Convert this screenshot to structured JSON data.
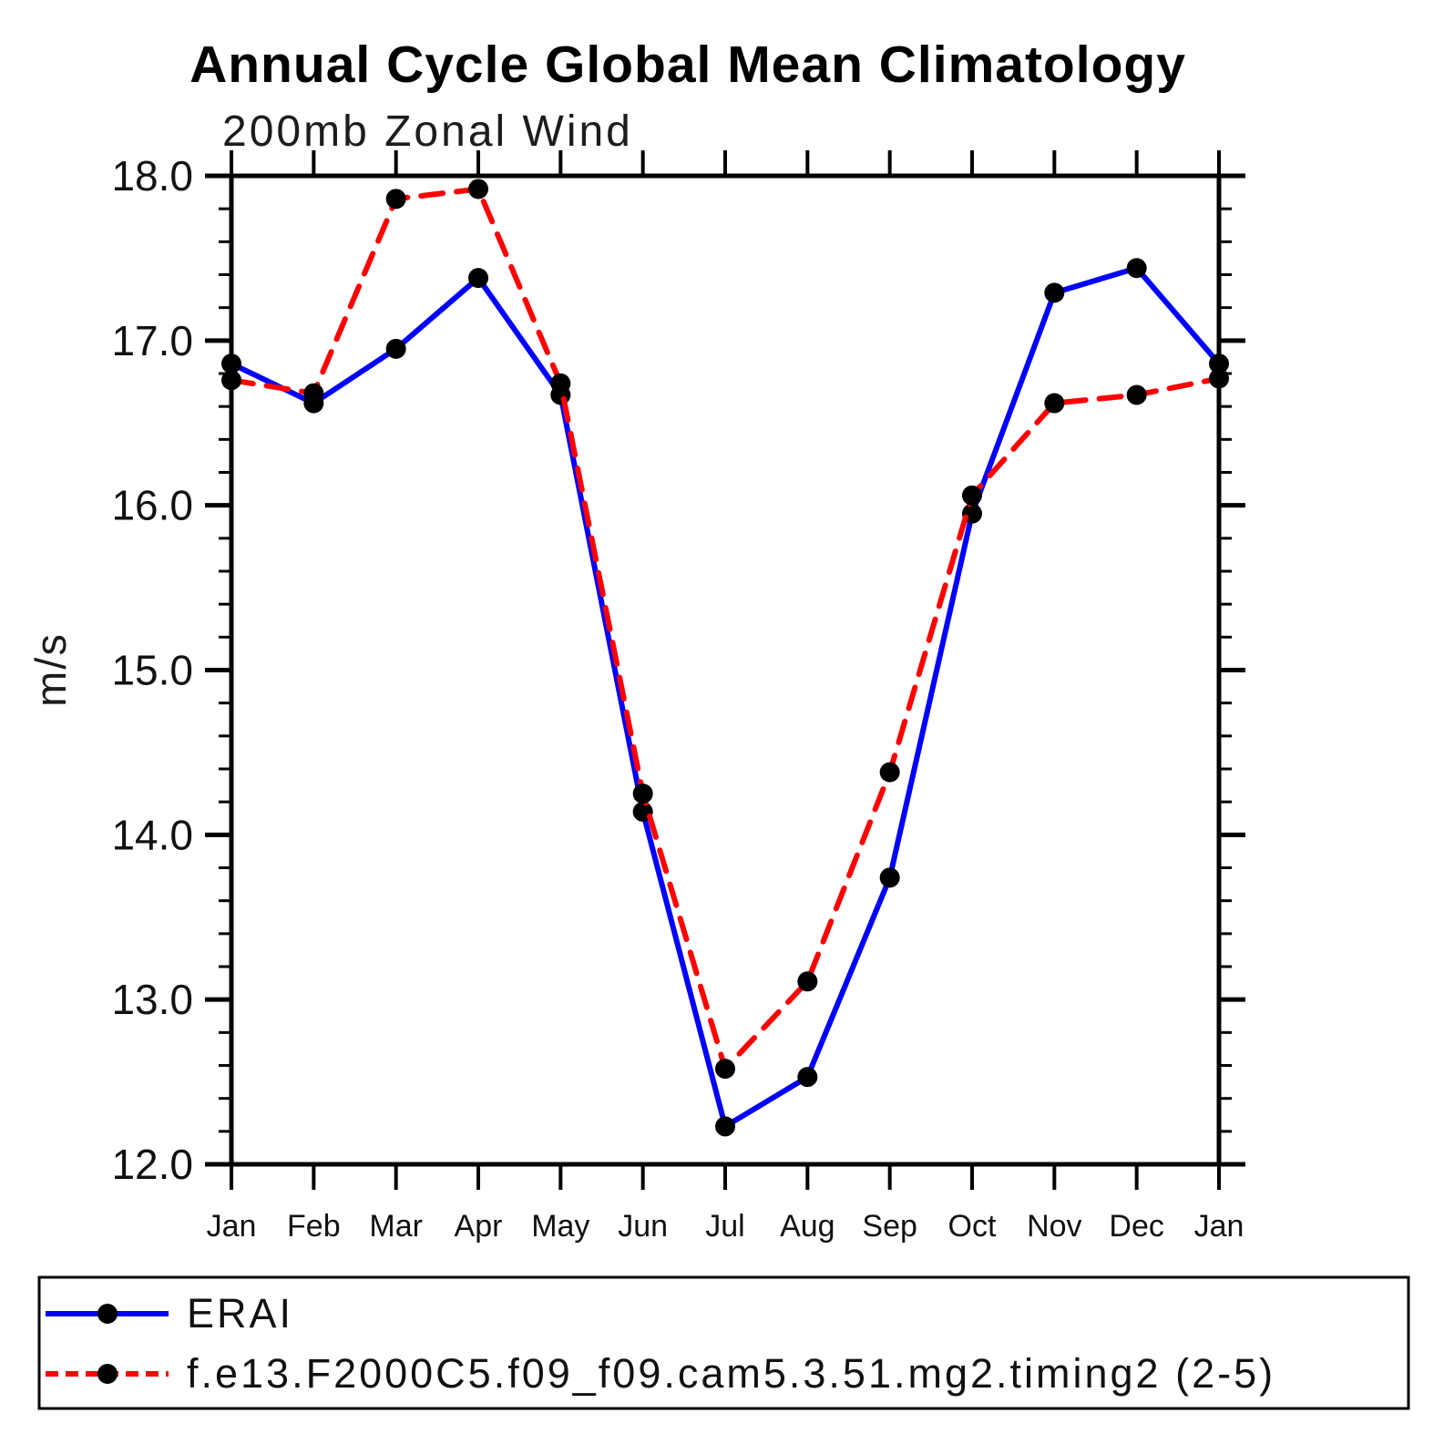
{
  "header": {
    "title": "Annual Cycle Global Mean Climatology",
    "subtitle": "200mb Zonal Wind"
  },
  "axes": {
    "y": {
      "label": "m/s",
      "min": 12.0,
      "max": 18.0,
      "major_step": 1.0,
      "minor_step": 0.2,
      "tick_labels": [
        "18.0",
        "17.0",
        "16.0",
        "15.0",
        "14.0",
        "13.0",
        "12.0"
      ]
    },
    "x": {
      "tick_labels": [
        "Jan",
        "Feb",
        "Mar",
        "Apr",
        "May",
        "Jun",
        "Jul",
        "Aug",
        "Sep",
        "Oct",
        "Nov",
        "Dec",
        "Jan"
      ]
    }
  },
  "legend": {
    "entries": [
      {
        "label": "ERAI",
        "color": "#0000ff",
        "style": "solid",
        "marker": "black-circle"
      },
      {
        "label": "f.e13.F2000C5.f09_f09.cam5.3.51.mg2.timing2 (2-5)",
        "color": "#ff0000",
        "style": "dashed",
        "marker": "black-circle"
      }
    ]
  },
  "colors": {
    "erai_line": "#0000ff",
    "model_line": "#ff0000",
    "marker": "#000000",
    "axis": "#000000"
  },
  "chart_data": {
    "type": "line",
    "title": "Annual Cycle Global Mean Climatology",
    "subtitle": "200mb Zonal Wind",
    "xlabel": "",
    "ylabel": "m/s",
    "ylim": [
      12.0,
      18.0
    ],
    "y_major_tick": 1.0,
    "y_minor_tick": 0.2,
    "grid": false,
    "legend_position": "bottom",
    "categories": [
      "Jan",
      "Feb",
      "Mar",
      "Apr",
      "May",
      "Jun",
      "Jul",
      "Aug",
      "Sep",
      "Oct",
      "Nov",
      "Dec",
      "Jan"
    ],
    "series": [
      {
        "name": "ERAI",
        "color": "#0000ff",
        "style": "solid",
        "marker": "black-circle",
        "values": [
          16.86,
          16.62,
          16.95,
          17.38,
          16.67,
          14.14,
          12.23,
          12.53,
          13.74,
          15.95,
          17.29,
          17.44,
          16.86
        ]
      },
      {
        "name": "f.e13.F2000C5.f09_f09.cam5.3.51.mg2.timing2 (2-5)",
        "color": "#ff0000",
        "style": "dashed",
        "marker": "black-circle",
        "values": [
          16.76,
          16.68,
          17.86,
          17.92,
          16.74,
          14.25,
          12.58,
          13.11,
          14.38,
          16.06,
          16.62,
          16.67,
          16.77
        ]
      }
    ]
  }
}
